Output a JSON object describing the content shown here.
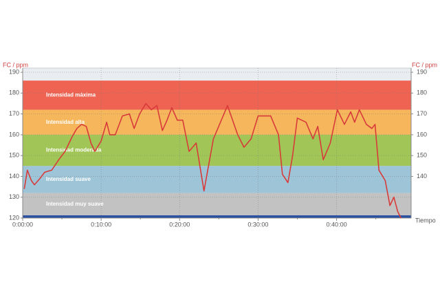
{
  "chart_data": {
    "type": "line",
    "ylabel": "FC / ppm",
    "y2label": "FC / ppm",
    "xlabel": "Tiempo",
    "xlim": [
      0,
      49.5
    ],
    "ylim": [
      120,
      192
    ],
    "y2lim": [
      120,
      192
    ],
    "xticks": [
      {
        "value": 0,
        "label": "0:00:00"
      },
      {
        "value": 10,
        "label": "0:10:00"
      },
      {
        "value": 20,
        "label": "0:20:00"
      },
      {
        "value": 30,
        "label": "0:30:00"
      },
      {
        "value": 40,
        "label": "0:40:00"
      }
    ],
    "yticks": [
      120,
      130,
      140,
      150,
      160,
      170,
      180,
      190
    ],
    "y2ticks": [
      140,
      150,
      160,
      170,
      180,
      190
    ],
    "grid": true,
    "zones": [
      {
        "name": "Intensidad máxima",
        "from": 172,
        "to": 186,
        "color": "#ee6352"
      },
      {
        "name": "Intensidad alta",
        "from": 160,
        "to": 172,
        "color": "#f5b65c"
      },
      {
        "name": "Intensidad moderada",
        "from": 145,
        "to": 160,
        "color": "#a1c556"
      },
      {
        "name": "Intensidad suave",
        "from": 132,
        "to": 145,
        "color": "#9dc4d7"
      },
      {
        "name": "Intensidad muy suave",
        "from": 121.3,
        "to": 132,
        "color": "#c2c2c2"
      }
    ],
    "series": [
      {
        "color": "#d83a3a",
        "x": [
          0.2,
          0.6,
          1.1,
          1.5,
          2.2,
          2.8,
          3.7,
          4.6,
          5.4,
          6.3,
          6.9,
          7.5,
          8.1,
          8.7,
          9.2,
          10,
          10.7,
          11.1,
          11.8,
          12.7,
          13.6,
          14.2,
          14.9,
          15.7,
          16.4,
          17.1,
          17.8,
          18.4,
          19,
          19.7,
          20.4,
          21.2,
          22.1,
          23.1,
          24.3,
          26.1,
          27.4,
          28.2,
          29.1,
          30,
          31.6,
          32.6,
          33.1,
          33.8,
          34.4,
          35,
          36.1,
          37,
          37.6,
          38.3,
          39.2,
          40.1,
          41,
          41.8,
          42.3,
          42.9,
          43.8,
          44.5,
          44.9,
          45.4,
          46.2,
          46.8,
          47.3,
          47.8,
          48.2
        ],
        "values": [
          134,
          143,
          138,
          136,
          139,
          142,
          143,
          148,
          152,
          159,
          163,
          165,
          164,
          156,
          152,
          157,
          166,
          160,
          160,
          169,
          170,
          163,
          170,
          175,
          172,
          174,
          162,
          167,
          173,
          167,
          167,
          152,
          156,
          133,
          158,
          174,
          160,
          154,
          158,
          169,
          169,
          160,
          141,
          137,
          150,
          168,
          166,
          158,
          164,
          148,
          156,
          172,
          165,
          171,
          166,
          172,
          165,
          163,
          165,
          143,
          138,
          126,
          130,
          123,
          120
        ]
      }
    ]
  }
}
